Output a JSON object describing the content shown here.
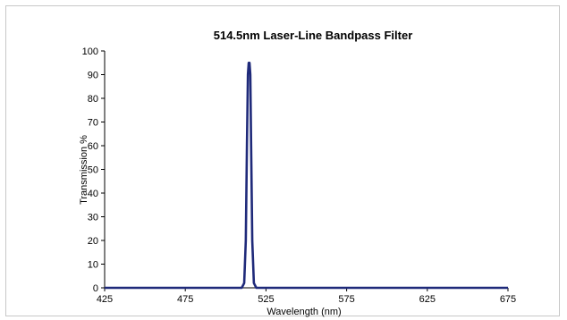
{
  "chart_data": {
    "type": "line",
    "title": "514.5nm Laser-Line Bandpass Filter",
    "xlabel": "Wavelength (nm)",
    "ylabel": "Transmission %",
    "xlim": [
      425,
      675
    ],
    "ylim": [
      0,
      100
    ],
    "xticks": [
      "425",
      "475",
      "525",
      "575",
      "625",
      "675"
    ],
    "yticks": [
      "0",
      "10",
      "20",
      "30",
      "40",
      "50",
      "60",
      "70",
      "80",
      "90",
      "100"
    ],
    "grid": false,
    "legend": "none",
    "series": [
      {
        "color": "#1f2a7a",
        "x": [
          425,
          510,
          511.5,
          512.5,
          513.2,
          513.8,
          514.3,
          514.8,
          515.3,
          515.8,
          516.5,
          517.5,
          519,
          675
        ],
        "y": [
          0,
          0,
          2,
          20,
          60,
          90,
          95,
          95,
          90,
          60,
          20,
          2,
          0,
          0
        ]
      }
    ]
  }
}
